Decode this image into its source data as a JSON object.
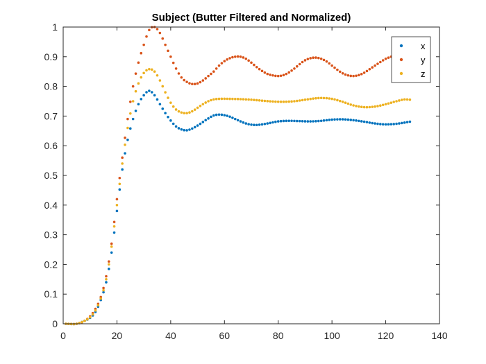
{
  "chart_data": {
    "type": "scatter",
    "title": "Subject (Butter Filtered and Normalized)",
    "xlabel": "",
    "ylabel": "",
    "xlim": [
      0,
      140
    ],
    "ylim": [
      0,
      1
    ],
    "xticks": [
      0,
      20,
      40,
      60,
      80,
      100,
      120,
      140
    ],
    "yticks": [
      0,
      0.1,
      0.2,
      0.3,
      0.4,
      0.5,
      0.6,
      0.7,
      0.8,
      0.9,
      1
    ],
    "grid": false,
    "legend_position": "top-right",
    "x_range": [
      1,
      129
    ],
    "series": [
      {
        "name": "x",
        "color": "#0072BD",
        "keypoints": [
          [
            1,
            0
          ],
          [
            5,
            0
          ],
          [
            8,
            0.01
          ],
          [
            10,
            0.02
          ],
          [
            12,
            0.04
          ],
          [
            14,
            0.08
          ],
          [
            16,
            0.14
          ],
          [
            18,
            0.24
          ],
          [
            20,
            0.38
          ],
          [
            22,
            0.52
          ],
          [
            24,
            0.62
          ],
          [
            26,
            0.69
          ],
          [
            28,
            0.74
          ],
          [
            30,
            0.77
          ],
          [
            32,
            0.785
          ],
          [
            34,
            0.77
          ],
          [
            36,
            0.74
          ],
          [
            38,
            0.71
          ],
          [
            40,
            0.685
          ],
          [
            42,
            0.665
          ],
          [
            44,
            0.655
          ],
          [
            46,
            0.652
          ],
          [
            48,
            0.658
          ],
          [
            50,
            0.668
          ],
          [
            52,
            0.68
          ],
          [
            54,
            0.692
          ],
          [
            56,
            0.702
          ],
          [
            58,
            0.705
          ],
          [
            60,
            0.703
          ],
          [
            62,
            0.698
          ],
          [
            64,
            0.69
          ],
          [
            66,
            0.682
          ],
          [
            68,
            0.675
          ],
          [
            70,
            0.671
          ],
          [
            72,
            0.67
          ],
          [
            74,
            0.672
          ],
          [
            76,
            0.675
          ],
          [
            80,
            0.682
          ],
          [
            84,
            0.684
          ],
          [
            88,
            0.683
          ],
          [
            92,
            0.682
          ],
          [
            96,
            0.684
          ],
          [
            100,
            0.688
          ],
          [
            104,
            0.689
          ],
          [
            108,
            0.686
          ],
          [
            112,
            0.681
          ],
          [
            116,
            0.675
          ],
          [
            120,
            0.672
          ],
          [
            124,
            0.674
          ],
          [
            127,
            0.678
          ],
          [
            129,
            0.681
          ]
        ]
      },
      {
        "name": "y",
        "color": "#D95319",
        "keypoints": [
          [
            1,
            0
          ],
          [
            5,
            0
          ],
          [
            8,
            0.01
          ],
          [
            10,
            0.025
          ],
          [
            12,
            0.05
          ],
          [
            14,
            0.09
          ],
          [
            16,
            0.16
          ],
          [
            18,
            0.27
          ],
          [
            20,
            0.42
          ],
          [
            22,
            0.56
          ],
          [
            24,
            0.69
          ],
          [
            26,
            0.8
          ],
          [
            28,
            0.88
          ],
          [
            30,
            0.94
          ],
          [
            32,
            0.99
          ],
          [
            34,
            1.0
          ],
          [
            36,
            0.98
          ],
          [
            38,
            0.94
          ],
          [
            40,
            0.9
          ],
          [
            42,
            0.86
          ],
          [
            44,
            0.83
          ],
          [
            46,
            0.815
          ],
          [
            48,
            0.808
          ],
          [
            50,
            0.81
          ],
          [
            52,
            0.82
          ],
          [
            54,
            0.835
          ],
          [
            56,
            0.85
          ],
          [
            58,
            0.87
          ],
          [
            60,
            0.885
          ],
          [
            62,
            0.895
          ],
          [
            64,
            0.9
          ],
          [
            66,
            0.9
          ],
          [
            68,
            0.893
          ],
          [
            70,
            0.88
          ],
          [
            72,
            0.865
          ],
          [
            74,
            0.852
          ],
          [
            76,
            0.842
          ],
          [
            78,
            0.837
          ],
          [
            80,
            0.835
          ],
          [
            82,
            0.838
          ],
          [
            84,
            0.847
          ],
          [
            86,
            0.86
          ],
          [
            88,
            0.875
          ],
          [
            90,
            0.888
          ],
          [
            92,
            0.895
          ],
          [
            94,
            0.897
          ],
          [
            96,
            0.893
          ],
          [
            98,
            0.884
          ],
          [
            100,
            0.87
          ],
          [
            102,
            0.856
          ],
          [
            104,
            0.844
          ],
          [
            106,
            0.837
          ],
          [
            108,
            0.835
          ],
          [
            110,
            0.838
          ],
          [
            112,
            0.846
          ],
          [
            114,
            0.858
          ],
          [
            116,
            0.87
          ],
          [
            118,
            0.882
          ],
          [
            120,
            0.893
          ],
          [
            122,
            0.9
          ],
          [
            124,
            0.905
          ],
          [
            127,
            0.905
          ],
          [
            129,
            0.902
          ]
        ]
      },
      {
        "name": "z",
        "color": "#EDB120",
        "keypoints": [
          [
            1,
            0
          ],
          [
            5,
            0
          ],
          [
            8,
            0.01
          ],
          [
            10,
            0.022
          ],
          [
            12,
            0.045
          ],
          [
            14,
            0.085
          ],
          [
            16,
            0.15
          ],
          [
            18,
            0.26
          ],
          [
            20,
            0.4
          ],
          [
            22,
            0.54
          ],
          [
            24,
            0.66
          ],
          [
            26,
            0.75
          ],
          [
            28,
            0.81
          ],
          [
            30,
            0.845
          ],
          [
            32,
            0.858
          ],
          [
            34,
            0.85
          ],
          [
            36,
            0.82
          ],
          [
            38,
            0.78
          ],
          [
            40,
            0.745
          ],
          [
            42,
            0.722
          ],
          [
            44,
            0.712
          ],
          [
            46,
            0.71
          ],
          [
            48,
            0.716
          ],
          [
            50,
            0.728
          ],
          [
            52,
            0.74
          ],
          [
            54,
            0.75
          ],
          [
            56,
            0.756
          ],
          [
            58,
            0.758
          ],
          [
            62,
            0.758
          ],
          [
            66,
            0.757
          ],
          [
            70,
            0.755
          ],
          [
            74,
            0.752
          ],
          [
            78,
            0.749
          ],
          [
            82,
            0.748
          ],
          [
            86,
            0.75
          ],
          [
            90,
            0.755
          ],
          [
            94,
            0.76
          ],
          [
            96,
            0.761
          ],
          [
            100,
            0.758
          ],
          [
            104,
            0.748
          ],
          [
            108,
            0.736
          ],
          [
            112,
            0.73
          ],
          [
            116,
            0.732
          ],
          [
            120,
            0.74
          ],
          [
            124,
            0.75
          ],
          [
            127,
            0.756
          ],
          [
            129,
            0.755
          ]
        ]
      }
    ]
  }
}
